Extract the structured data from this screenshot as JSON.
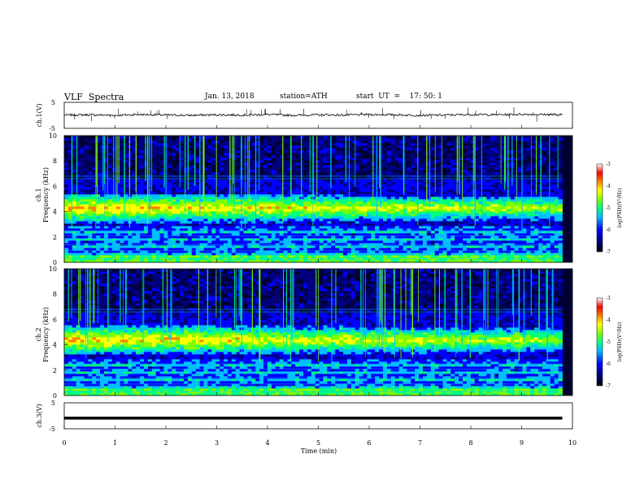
{
  "header": {
    "title": "VLF  Spectra",
    "date": "Jan. 13, 2018",
    "station": "station=ATH",
    "start": "start  UT  =    17: 50: 1"
  },
  "colors": {
    "colormap": [
      "#000033",
      "#00007f",
      "#0000ff",
      "#00bfff",
      "#00ff80",
      "#80ff00",
      "#ffff00",
      "#ff8000",
      "#ff0000",
      "#ffffff"
    ],
    "trace": "#000000",
    "axis": "#000000"
  },
  "chart_data": [
    {
      "type": "line",
      "name": "ch1-waveform",
      "ylabel": "ch.1(V)",
      "ylim": [
        -5,
        5
      ],
      "yticks": [
        "5",
        "-5"
      ],
      "xlim": [
        0,
        10
      ],
      "x": [
        0,
        0.5,
        1,
        1.5,
        2,
        2.5,
        3,
        3.5,
        4,
        4.5,
        5,
        5.5,
        6,
        6.5,
        7,
        7.5,
        8,
        8.5,
        9,
        9.5,
        9.8
      ],
      "y": [
        0.1,
        0.2,
        0.0,
        0.3,
        0.1,
        0.0,
        0.2,
        0.1,
        0.3,
        0.0,
        0.2,
        0.1,
        0.3,
        0.2,
        0.0,
        0.1,
        0.3,
        0.2,
        0.4,
        0.3,
        0.2
      ]
    },
    {
      "type": "heatmap",
      "name": "ch1-spectrogram",
      "ylabel": "ch.1\nFrequency (kHz)",
      "ylim": [
        0,
        10
      ],
      "yticks": [
        "0",
        "2",
        "4",
        "6",
        "8",
        "10"
      ],
      "xlim": [
        0,
        10
      ],
      "data_xmax": 9.8,
      "colorbar": {
        "label": "log(PSD)(V²/Hz)",
        "range": [
          -7,
          -3
        ],
        "ticks": [
          "-3",
          "-4",
          "-5",
          "-6",
          "-7"
        ]
      },
      "features": {
        "emission_band_khz": [
          3.0,
          5.4
        ],
        "emission_peak_khz": 4.3,
        "peak_log_psd": -3.5,
        "background_log_psd": -6.5
      }
    },
    {
      "type": "heatmap",
      "name": "ch2-spectrogram",
      "ylabel": "ch.2\nFrequency (kHz)",
      "ylim": [
        0,
        10
      ],
      "yticks": [
        "0",
        "2",
        "4",
        "6",
        "8",
        "10"
      ],
      "xlim": [
        0,
        10
      ],
      "data_xmax": 9.8,
      "colorbar": {
        "label": "log(PSD)(V²/Hz)",
        "range": [
          -7,
          -3
        ],
        "ticks": [
          "-3",
          "-4",
          "-5",
          "-6",
          "-7"
        ]
      },
      "features": {
        "emission_band_khz": [
          3.2,
          5.6
        ],
        "emission_peak_khz": 4.4,
        "peak_log_psd": -3.5,
        "background_log_psd": -6.8
      }
    },
    {
      "type": "line",
      "name": "ch3-waveform",
      "ylabel": "ch.3(V)",
      "ylim": [
        -5,
        5
      ],
      "yticks": [
        "5",
        "-5"
      ],
      "xlim": [
        0,
        10
      ],
      "x": [
        0,
        9.8
      ],
      "y": [
        -0.9,
        -0.9
      ],
      "xlabel": "Time  (min)",
      "xticks": [
        "0",
        "1",
        "2",
        "3",
        "4",
        "5",
        "6",
        "7",
        "8",
        "9",
        "10"
      ]
    }
  ]
}
